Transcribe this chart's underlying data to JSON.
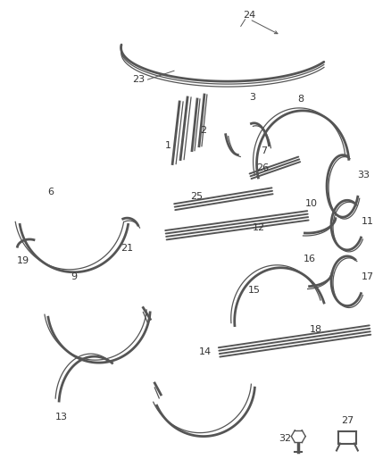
{
  "background_color": "#ffffff",
  "line_color": "#555555",
  "label_color": "#333333",
  "lw_thick": 2.0,
  "lw_thin": 0.9,
  "lw_med": 1.4,
  "fs": 8
}
